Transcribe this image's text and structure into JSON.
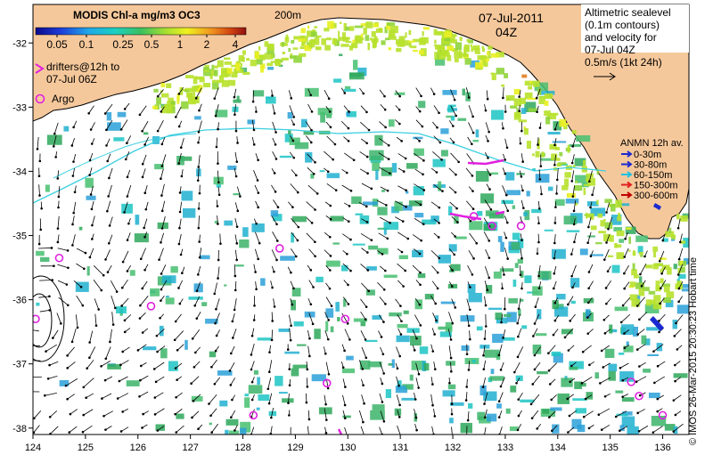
{
  "colors": {
    "land": "#f5c89b",
    "sea": "#ffffff",
    "chl_low": "#2aa0d8",
    "chl_mid": "#3cb46a",
    "chl_high": "#b7e12b",
    "argo": "#e020e0",
    "drifter": "#e020e0",
    "vector": "#000000",
    "contour": "#3ccfe0",
    "adcp_0_30": "#1a2ad0",
    "adcp_30_80": "#1a2ad0",
    "adcp_60_150": "#20c0e0",
    "adcp_150_300": "#e02020",
    "adcp_300_600": "#c00000"
  },
  "colorbar": {
    "title": "MODIS Chl-a mg/m3 OC3",
    "ticks": [
      "0.05",
      "0.1",
      "0.25",
      "0.5",
      "1",
      "2",
      "4"
    ]
  },
  "contour_label": "200m",
  "date": "07-Jul-2011",
  "time": "04Z",
  "legend_drifters": {
    "line1": "drifters@12h to",
    "line2": "07-Jul 06Z"
  },
  "legend_argo": "Argo",
  "sealevel_note": [
    "Altimetric sealevel",
    "(0.1m contours)",
    "and velocity for",
    "07-Jul 04Z",
    "0.5m/s (1kt 24h)"
  ],
  "anmn": {
    "title": "ANMN 12h av.",
    "items": [
      "0-30m",
      "30-80m",
      "60-150m",
      "150-300m",
      "300-600m"
    ]
  },
  "side_note": "© IMOS 26-Mar-2015 20:30:23 Hobart time",
  "axes": {
    "x": {
      "min": 124,
      "max": 136.5,
      "ticks": [
        124,
        125,
        126,
        127,
        128,
        129,
        130,
        131,
        132,
        133,
        134,
        135,
        136
      ]
    },
    "y": {
      "min": -38.1,
      "max": -31.4,
      "ticks": [
        -32,
        -33,
        -34,
        -35,
        -36,
        -37,
        -38
      ]
    }
  },
  "argo_floats": [
    {
      "lon": 124.5,
      "lat": -35.35
    },
    {
      "lon": 124.05,
      "lat": -36.3
    },
    {
      "lon": 126.25,
      "lat": -36.1
    },
    {
      "lon": 128.7,
      "lat": -35.2
    },
    {
      "lon": 129.95,
      "lat": -36.3
    },
    {
      "lon": 129.6,
      "lat": -37.3
    },
    {
      "lon": 128.2,
      "lat": -37.8
    },
    {
      "lon": 132.4,
      "lat": -34.7
    },
    {
      "lon": 132.75,
      "lat": -34.85
    },
    {
      "lon": 133.3,
      "lat": -34.85
    },
    {
      "lon": 135.4,
      "lat": -37.28
    },
    {
      "lon": 135.55,
      "lat": -37.5
    },
    {
      "lon": 136.0,
      "lat": -37.8
    }
  ]
}
